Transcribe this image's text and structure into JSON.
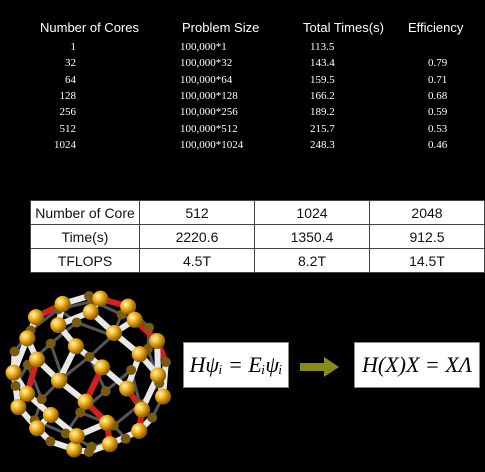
{
  "table1": {
    "headers": [
      "Number of Cores",
      "Problem Size",
      "Total Times(s)",
      "Efficiency"
    ],
    "rows": [
      [
        "1",
        "100,000*1",
        "113.5",
        ""
      ],
      [
        "32",
        "100,000*32",
        "143.4",
        "0.79"
      ],
      [
        "64",
        "100,000*64",
        "159.5",
        "0.71"
      ],
      [
        "128",
        "100,000*128",
        "166.2",
        "0.68"
      ],
      [
        "256",
        "100,000*256",
        "189.2",
        "0.59"
      ],
      [
        "512",
        "100,000*512",
        "215.7",
        "0.53"
      ],
      [
        "1024",
        "100,000*1024",
        "248.3",
        "0.46"
      ]
    ]
  },
  "table2": {
    "rows": [
      [
        "Number of Core",
        "512",
        "1024",
        "2048"
      ],
      [
        "Time(s)",
        "2220.6",
        "1350.4",
        "912.5"
      ],
      [
        "TFLOPS",
        "4.5T",
        "8.2T",
        "14.5T"
      ]
    ]
  },
  "equations": {
    "eq1": "Hψᵢ = Eᵢψᵢ",
    "eq2": "H(X)X = XΛ"
  },
  "colors": {
    "arrow": "#8a8a1a",
    "atom": "#f0b020",
    "bond": "#e8e8e8",
    "ring": "#d02020"
  }
}
